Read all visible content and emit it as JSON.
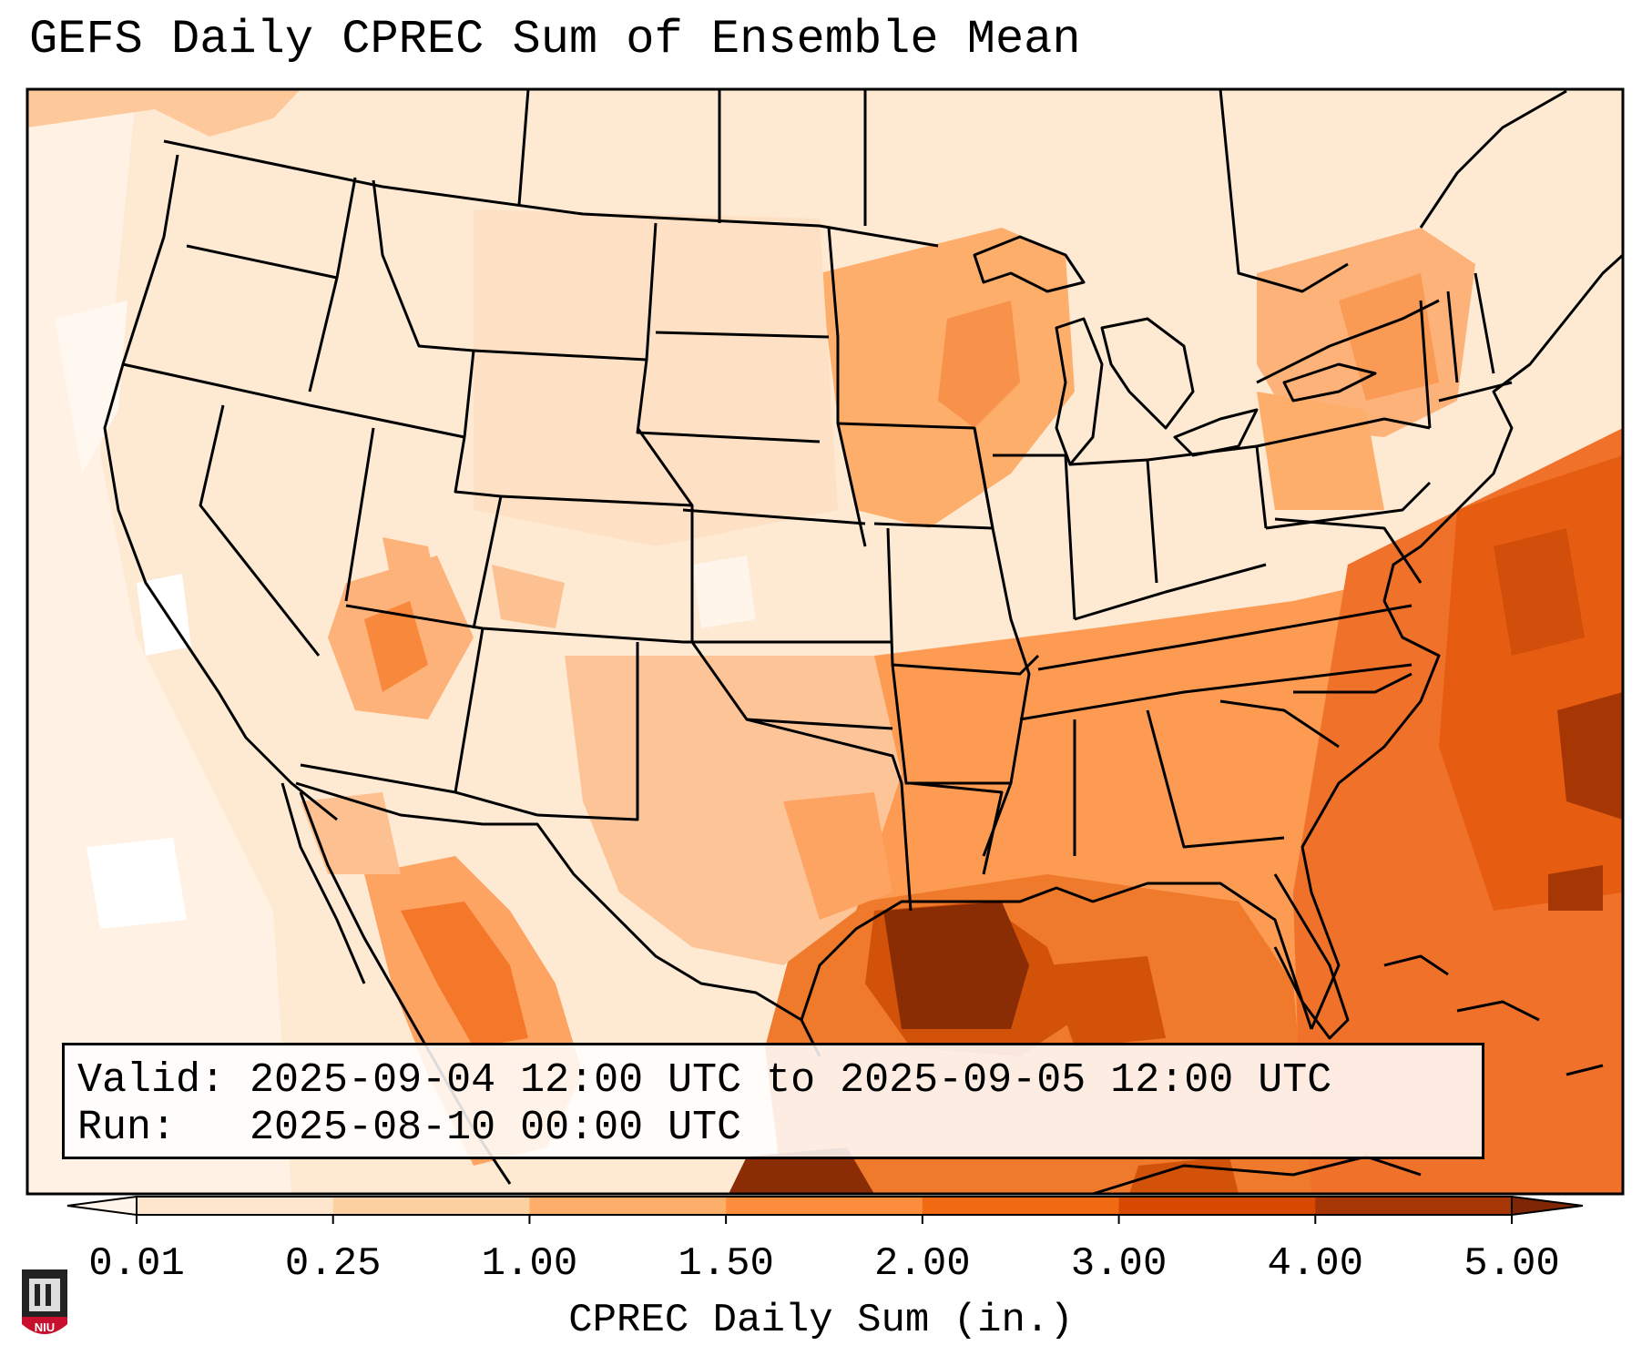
{
  "title": "GEFS Daily CPREC Sum of Ensemble Mean",
  "info": {
    "valid_label": "Valid:",
    "valid_value": "2025-09-04 12:00 UTC to 2025-09-05 12:00 UTC",
    "run_label": "Run:",
    "run_value": "2025-08-10 00:00 UTC"
  },
  "colorbar": {
    "label": "CPREC Daily Sum (in.)",
    "ticks": [
      "0.01",
      "0.25",
      "1.00",
      "1.50",
      "2.00",
      "3.00",
      "4.00",
      "5.00"
    ],
    "colors": [
      "#fff5eb",
      "#fee6ce",
      "#fdd0a2",
      "#fdae6b",
      "#fd8d3c",
      "#f16913",
      "#d94801",
      "#a63603",
      "#7f2704"
    ]
  },
  "logo": {
    "text": "NIU"
  },
  "map": {
    "projection": "Lambert conformal conic",
    "region": "Contiguous United States, northern Mexico, Gulf of Mexico",
    "colors": {
      "background": "#fef0e0",
      "outline": "#000000"
    }
  }
}
